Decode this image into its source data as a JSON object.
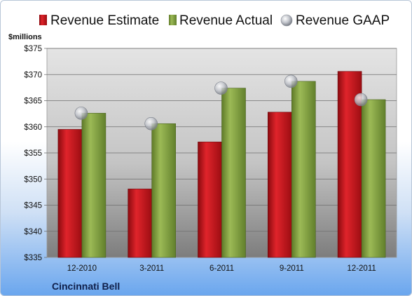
{
  "chart_data": {
    "type": "bar",
    "company": "Cincinnati Bell",
    "ylabel": "$millions",
    "ylim": [
      335,
      375
    ],
    "ytick_step": 5,
    "ytick_prefix": "$",
    "grid": true,
    "legend_position": "top",
    "categories": [
      "12-2010",
      "3-2011",
      "6-2011",
      "9-2011",
      "12-2011"
    ],
    "series": [
      {
        "name": "Revenue Estimate",
        "kind": "bar",
        "color": "#c8141c",
        "values": [
          359.5,
          348.1,
          357.1,
          362.8,
          370.6
        ]
      },
      {
        "name": "Revenue Actual",
        "kind": "bar",
        "color": "#7c9a3c",
        "values": [
          362.6,
          360.6,
          367.4,
          368.7,
          365.2
        ]
      },
      {
        "name": "Revenue GAAP",
        "kind": "marker",
        "color": "#b8bcc4",
        "values": [
          362.6,
          360.6,
          367.4,
          368.7,
          365.2
        ]
      }
    ]
  }
}
